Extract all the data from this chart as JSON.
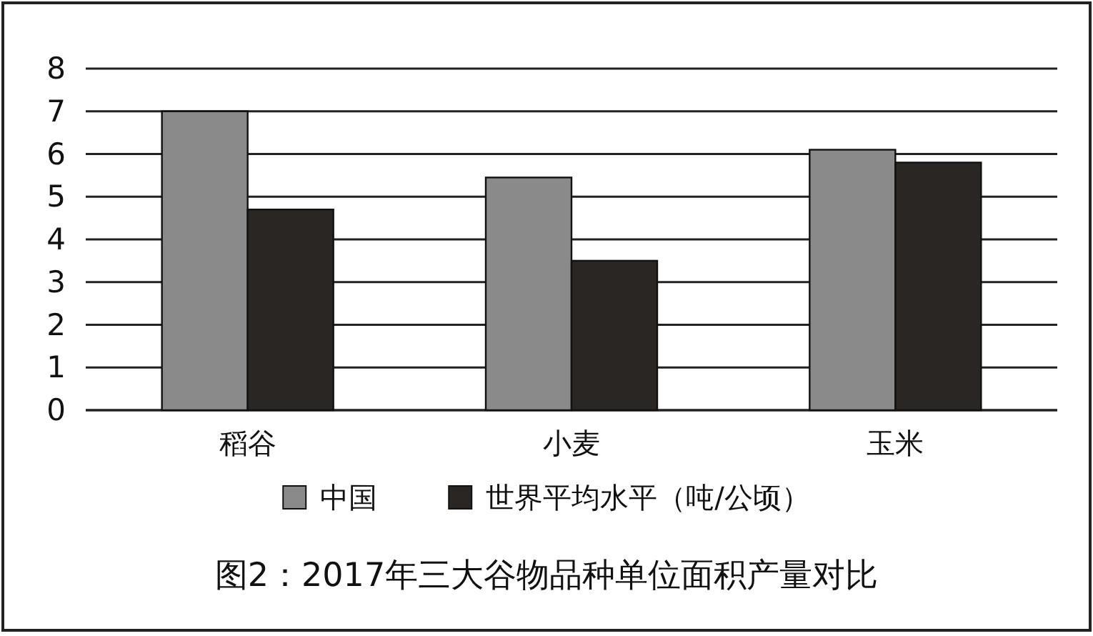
{
  "chart_data": {
    "type": "bar",
    "title": "图2：2017年三大谷物品种单位面积产量对比",
    "categories": [
      "稻谷",
      "小麦",
      "玉米"
    ],
    "series": [
      {
        "name": "中国",
        "color": "#8a8a8a",
        "values": [
          7.0,
          5.45,
          6.1
        ]
      },
      {
        "name": "世界平均水平（吨/公顷）",
        "color": "#2a2624",
        "values": [
          4.7,
          3.5,
          5.8
        ]
      }
    ],
    "ylim": [
      0,
      8
    ],
    "yticks": [
      0,
      1,
      2,
      3,
      4,
      5,
      6,
      7,
      8
    ],
    "grid": "y",
    "legend": "bottom"
  }
}
